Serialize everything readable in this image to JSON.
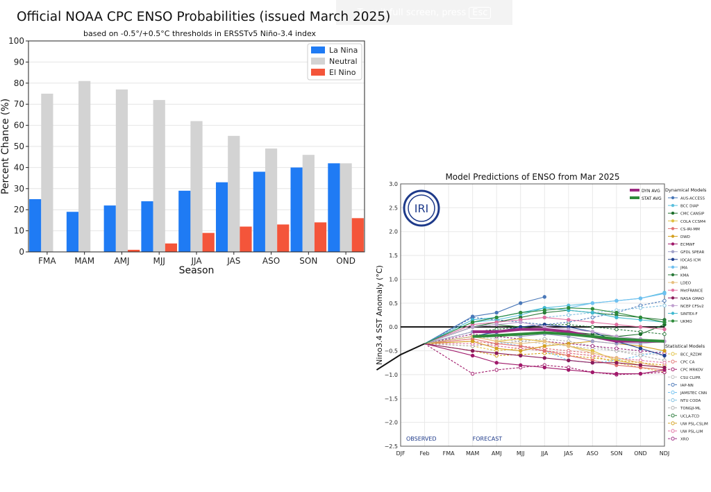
{
  "fullscreen_banner": {
    "text": "To exit full screen, press",
    "key": "Esc"
  },
  "chart_data": [
    {
      "type": "bar",
      "title": "Official NOAA CPC ENSO Probabilities (issued March 2025)",
      "subtitle": "based on -0.5°/+0.5°C thresholds in ERSSTv5 Niño-3.4 index",
      "xlabel": "Season",
      "ylabel": "Percent Chance (%)",
      "ylim": [
        0,
        100
      ],
      "yticks": [
        0,
        10,
        20,
        30,
        40,
        50,
        60,
        70,
        80,
        90,
        100
      ],
      "grid": true,
      "legend_position": "top-right",
      "categories": [
        "FMA",
        "MAM",
        "AMJ",
        "MJJ",
        "JJA",
        "JAS",
        "ASO",
        "SON",
        "OND"
      ],
      "series": [
        {
          "name": "La Nina",
          "color": "#1f7bf4",
          "values": [
            25,
            19,
            22,
            24,
            29,
            33,
            38,
            40,
            42
          ]
        },
        {
          "name": "Neutral",
          "color": "#d3d3d3",
          "values": [
            75,
            81,
            77,
            72,
            62,
            55,
            49,
            46,
            42
          ]
        },
        {
          "name": "El Nino",
          "color": "#f4553a",
          "values": [
            0,
            0,
            1,
            4,
            9,
            12,
            13,
            14,
            16
          ]
        }
      ]
    },
    {
      "type": "line",
      "title": "Model Predictions of ENSO from Mar 2025",
      "xlabel": "",
      "ylabel": "Nino3.4 SST Anomaly (°C)",
      "ylim": [
        -2.5,
        3.0
      ],
      "yticks": [
        -2.5,
        -2.0,
        -1.5,
        -1.0,
        -0.5,
        0.0,
        0.5,
        1.0,
        1.5,
        2.0,
        2.5,
        3.0
      ],
      "x_categories": [
        "DJF",
        "Feb",
        "FMA",
        "MAM",
        "AMJ",
        "MJJ",
        "JJA",
        "JAS",
        "ASO",
        "SON",
        "OND",
        "NDJ"
      ],
      "grid": true,
      "logo_text": "IRI",
      "observed_label": "OBSERVED",
      "forecast_label": "FORECAST",
      "observed": {
        "x": [
          -1,
          0,
          1
        ],
        "values": [
          -0.9,
          -0.58,
          -0.35
        ]
      },
      "averages": [
        {
          "name": "DYN AVG",
          "color": "#9c2a82",
          "values": [
            -0.1,
            -0.1,
            -0.05,
            -0.05,
            -0.1,
            -0.2,
            -0.3,
            -0.3,
            -0.3
          ]
        },
        {
          "name": "STAT AVG",
          "color": "#2e8b3a",
          "values": [
            -0.2,
            -0.18,
            -0.15,
            -0.12,
            -0.15,
            -0.2,
            -0.25,
            -0.28,
            -0.3
          ]
        }
      ],
      "dynamical_header": "Dynamical Models",
      "statistical_header": "Statistical Models",
      "dynamical_models": [
        {
          "name": "AUS-ACCESS",
          "color": "#4a78b8",
          "values": [
            0.22,
            0.3,
            0.5,
            0.63
          ]
        },
        {
          "name": "BCC DIAP",
          "color": "#5bc0de",
          "values": [
            0.1,
            0.15,
            0.25,
            0.4,
            0.45,
            0.5,
            0.55,
            0.6,
            0.72
          ]
        },
        {
          "name": "CMC CANSIP",
          "color": "#1b6e2a",
          "values": [
            0.0,
            0.05,
            0.0,
            -0.05,
            -0.1,
            -0.15,
            -0.2,
            -0.15,
            0.05
          ]
        },
        {
          "name": "COLA CCSM4",
          "color": "#e0c040",
          "values": [
            -0.2,
            -0.3,
            -0.25,
            -0.3,
            -0.4,
            -0.5,
            -0.7,
            -0.8,
            -0.85
          ]
        },
        {
          "name": "CS-IRI-MM",
          "color": "#e07070",
          "values": [
            -0.25,
            -0.35,
            -0.4,
            -0.5,
            -0.6,
            -0.7,
            -0.8,
            -0.85,
            -0.9
          ]
        },
        {
          "name": "DWD",
          "color": "#d4a020",
          "values": [
            -0.3,
            -0.45,
            -0.5,
            -0.4,
            -0.35,
            -0.3,
            -0.35,
            -0.4,
            -0.5
          ]
        },
        {
          "name": "ECMWF",
          "color": "#a0186a",
          "values": [
            -0.6,
            -0.75,
            -0.8,
            -0.85,
            -0.9,
            -0.95,
            -0.98,
            -0.98,
            -0.9
          ]
        },
        {
          "name": "GFDL SPEAR",
          "color": "#a0a0c8",
          "values": [
            -0.1,
            -0.15,
            -0.2,
            -0.15,
            -0.2,
            -0.3,
            -0.35,
            -0.35,
            -0.3
          ]
        },
        {
          "name": "IOCAS ICM",
          "color": "#1f3f8f",
          "values": [
            -0.2,
            -0.1,
            0.0,
            0.05,
            0.0,
            -0.1,
            -0.3,
            -0.45,
            -0.6
          ]
        },
        {
          "name": "JMA",
          "color": "#6fc0f0",
          "values": [
            0.1,
            0.2,
            0.3,
            0.35,
            0.4,
            0.5,
            0.55,
            0.6,
            0.7
          ]
        },
        {
          "name": "KMA",
          "color": "#2a7a3a",
          "values": [
            0.0,
            0.1,
            0.2,
            0.3,
            0.35,
            0.3,
            0.25,
            0.2,
            0.15
          ]
        },
        {
          "name": "LDEO",
          "color": "#e8c080",
          "values": [
            -0.2,
            -0.3,
            -0.35,
            -0.3,
            -0.4,
            -0.55,
            -0.65,
            -0.75,
            -0.85
          ]
        },
        {
          "name": "MetFRANCE",
          "color": "#e06fa0",
          "values": [
            0.05,
            0.1,
            0.15,
            0.2,
            0.15,
            0.1,
            0.05,
            0.0,
            -0.05
          ]
        },
        {
          "name": "NASA GMAO",
          "color": "#8b1a5a",
          "values": [
            -0.5,
            -0.55,
            -0.6,
            -0.65,
            -0.7,
            -0.75,
            -0.75,
            -0.8,
            -0.85
          ]
        },
        {
          "name": "NCEP CFSv2",
          "color": "#c0a0d0",
          "values": [
            0.0,
            0.05,
            0.1,
            0.0,
            -0.05,
            -0.1,
            -0.2,
            -0.25,
            -0.3
          ]
        },
        {
          "name": "SINTEX-F",
          "color": "#40b8d0",
          "values": [
            0.15,
            0.2,
            0.3,
            0.4,
            0.35,
            0.3,
            0.2,
            0.15,
            0.1
          ]
        },
        {
          "name": "UKMO",
          "color": "#2e8b3a",
          "values": [
            0.1,
            0.2,
            0.3,
            0.35,
            0.4,
            0.38,
            0.3,
            0.2,
            0.1
          ]
        }
      ],
      "statistical_models": [
        {
          "name": "BCC_RZDM",
          "color": "#e0c040",
          "values": [
            -0.4,
            -0.5,
            -0.45,
            -0.5,
            -0.55,
            -0.6,
            -0.75,
            -0.85,
            -0.95
          ]
        },
        {
          "name": "CPC CA",
          "color": "#e07070",
          "values": [
            -0.3,
            -0.35,
            -0.4,
            -0.45,
            -0.5,
            -0.55,
            -0.65,
            -0.75,
            -0.85
          ]
        },
        {
          "name": "CPC MRKOV",
          "color": "#a0186a",
          "values": [
            -0.98,
            -0.9,
            -0.85,
            -0.8,
            -0.85,
            -0.95,
            -1.0,
            -0.98,
            -0.95
          ]
        },
        {
          "name": "CSU CLIPR",
          "color": "#c0c0c0",
          "values": [
            -0.2,
            -0.25,
            -0.3,
            -0.35,
            -0.4,
            -0.45,
            -0.5,
            -0.55,
            -0.6
          ]
        },
        {
          "name": "IAP-NN",
          "color": "#4a78b8",
          "values": [
            0.2,
            0.15,
            0.1,
            0.05,
            0.1,
            0.2,
            0.3,
            0.45,
            0.55
          ]
        },
        {
          "name": "JAMSTEC CNN",
          "color": "#6fc0f0",
          "values": [
            -0.2,
            -0.3,
            -0.4,
            -0.5,
            -0.7,
            -0.75,
            -0.7,
            -0.6,
            -0.5
          ]
        },
        {
          "name": "NTU CODA",
          "color": "#80c0e0",
          "values": [
            0.05,
            0.1,
            0.15,
            0.2,
            0.25,
            0.3,
            0.35,
            0.4,
            0.45
          ]
        },
        {
          "name": "TONGJI-ML",
          "color": "#b0b0b0",
          "values": [
            -0.4,
            -0.35,
            -0.3,
            -0.25,
            -0.3,
            -0.4,
            -0.5,
            -0.6,
            -0.7
          ]
        },
        {
          "name": "UCLA-TCD",
          "color": "#2a7a3a",
          "values": [
            -0.1,
            -0.05,
            0.0,
            0.05,
            0.05,
            0.0,
            -0.05,
            -0.1,
            -0.15
          ]
        },
        {
          "name": "UW PSL-CSLIM",
          "color": "#d4a020",
          "values": [
            -0.5,
            -0.6,
            -0.58,
            -0.55,
            -0.6,
            -0.65,
            -0.7,
            -0.75,
            -0.8
          ]
        },
        {
          "name": "UW PSL-LIM",
          "color": "#e06fa0",
          "values": [
            -0.35,
            -0.4,
            -0.45,
            -0.5,
            -0.55,
            -0.6,
            -0.65,
            -0.7,
            -0.75
          ]
        },
        {
          "name": "XRO",
          "color": "#9c2a82",
          "values": [
            -0.15,
            -0.2,
            -0.25,
            -0.3,
            -0.35,
            -0.4,
            -0.45,
            -0.5,
            -0.55
          ]
        }
      ]
    }
  ]
}
